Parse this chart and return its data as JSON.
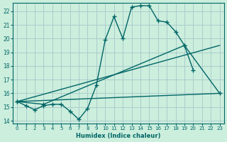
{
  "xlabel": "Humidex (Indice chaleur)",
  "ylabel": "",
  "xlim": [
    -0.5,
    23.5
  ],
  "ylim": [
    13.8,
    22.6
  ],
  "bg_color": "#cceedd",
  "grid_color": "#aacccc",
  "line_color": "#006666",
  "lines": [
    {
      "x": [
        0,
        1,
        2,
        3,
        4,
        5,
        6,
        7,
        8,
        9,
        10,
        11,
        12,
        13,
        14,
        15,
        16,
        17,
        18,
        19,
        20,
        21,
        22,
        23
      ],
      "y": [
        15.4,
        15.1,
        14.8,
        15.1,
        15.2,
        15.2,
        14.7,
        14.1,
        14.9,
        16.6,
        19.9,
        21.6,
        20.0,
        22.3,
        22.4,
        22.4,
        21.3,
        21.2,
        20.5,
        19.5,
        17.7,
        null,
        null,
        null
      ]
    },
    {
      "x": [
        0,
        1,
        2,
        3,
        4,
        5,
        6,
        7,
        8,
        9,
        10,
        11,
        12,
        13,
        14,
        15,
        16,
        17,
        18,
        19,
        20,
        21,
        22,
        23
      ],
      "y": [
        15.4,
        null,
        null,
        15.2,
        null,
        null,
        null,
        null,
        null,
        null,
        null,
        null,
        null,
        null,
        null,
        null,
        null,
        null,
        null,
        19.5,
        null,
        null,
        null,
        16.0
      ]
    },
    {
      "x": [
        0,
        23
      ],
      "y": [
        15.4,
        16.0
      ]
    },
    {
      "x": [
        0,
        23
      ],
      "y": [
        15.4,
        19.5
      ]
    }
  ],
  "yticks": [
    14,
    15,
    16,
    17,
    18,
    19,
    20,
    21,
    22
  ],
  "xticks": [
    0,
    1,
    2,
    3,
    4,
    5,
    6,
    7,
    8,
    9,
    10,
    11,
    12,
    13,
    14,
    15,
    16,
    17,
    18,
    19,
    20,
    21,
    22,
    23
  ]
}
